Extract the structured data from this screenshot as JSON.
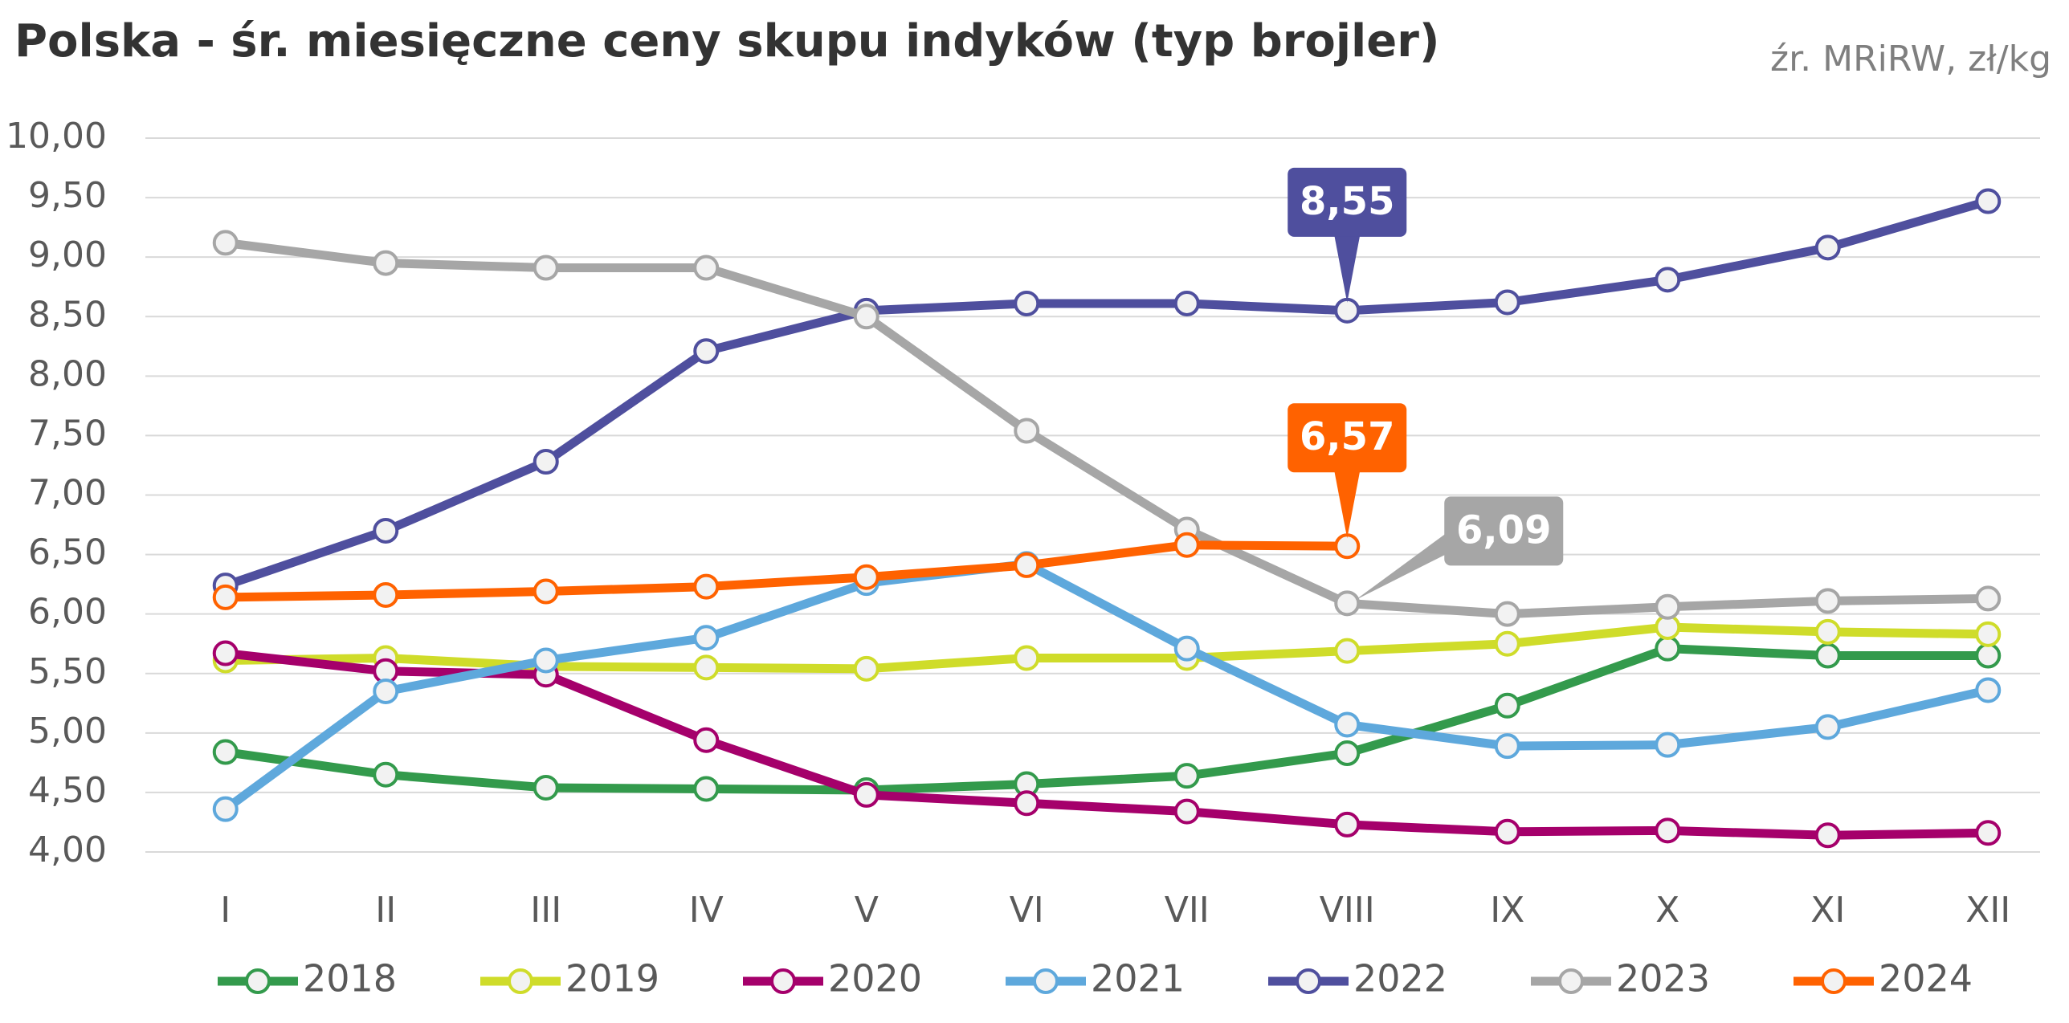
{
  "chart_data": {
    "type": "line",
    "title": "Polska - śr. miesięczne ceny skupu indyków (typ brojler)",
    "subtitle": "źr. MRiRW, zł/kg",
    "categories": [
      "I",
      "II",
      "III",
      "IV",
      "V",
      "VI",
      "VII",
      "VIII",
      "IX",
      "X",
      "XI",
      "XII"
    ],
    "ylim": [
      4,
      10
    ],
    "yticks": [
      {
        "value": 4,
        "label": "4,00"
      },
      {
        "value": 4.5,
        "label": "4,50"
      },
      {
        "value": 5,
        "label": "5,00"
      },
      {
        "value": 5.5,
        "label": "5,50"
      },
      {
        "value": 6,
        "label": "6,00"
      },
      {
        "value": 6.5,
        "label": "6,50"
      },
      {
        "value": 7,
        "label": "7,00"
      },
      {
        "value": 7.5,
        "label": "7,50"
      },
      {
        "value": 8,
        "label": "8,00"
      },
      {
        "value": 8.5,
        "label": "8,50"
      },
      {
        "value": 9,
        "label": "9,00"
      },
      {
        "value": 9.5,
        "label": "9,50"
      },
      {
        "value": 10,
        "label": "10,00"
      }
    ],
    "grid": true,
    "legend": "bottom",
    "series": [
      {
        "name": "2018",
        "color": "#339a4c",
        "values": [
          4.84,
          4.65,
          4.54,
          4.53,
          4.52,
          4.57,
          4.64,
          4.83,
          5.23,
          5.71,
          5.65,
          5.65
        ]
      },
      {
        "name": "2019",
        "color": "#cfdc2a",
        "values": [
          5.61,
          5.63,
          5.56,
          5.55,
          5.54,
          5.63,
          5.63,
          5.69,
          5.75,
          5.89,
          5.85,
          5.83
        ]
      },
      {
        "name": "2020",
        "color": "#a5006b",
        "values": [
          5.67,
          5.52,
          5.49,
          4.94,
          4.48,
          4.41,
          4.34,
          4.23,
          4.17,
          4.18,
          4.14,
          4.16
        ]
      },
      {
        "name": "2021",
        "color": "#5ea8dc",
        "values": [
          4.36,
          5.35,
          5.61,
          5.8,
          6.26,
          6.42,
          5.71,
          5.07,
          4.89,
          4.9,
          5.05,
          5.36
        ]
      },
      {
        "name": "2022",
        "color": "#4f4f9e",
        "values": [
          6.24,
          6.7,
          7.28,
          8.21,
          8.55,
          8.61,
          8.61,
          8.55,
          8.62,
          8.81,
          9.08,
          9.47
        ],
        "value_labels": [
          null,
          null,
          null,
          null,
          null,
          null,
          null,
          "8,55",
          null,
          null,
          null,
          null
        ]
      },
      {
        "name": "2023",
        "color": "#a6a6a6",
        "values": [
          9.12,
          8.95,
          8.91,
          8.91,
          8.5,
          7.54,
          6.71,
          6.09,
          6.0,
          6.06,
          6.11,
          6.13
        ],
        "value_labels": [
          null,
          null,
          null,
          null,
          null,
          null,
          null,
          "6,09",
          null,
          null,
          null,
          null
        ]
      },
      {
        "name": "2024",
        "color": "#ff6200",
        "values": [
          6.14,
          6.16,
          6.19,
          6.23,
          6.31,
          6.41,
          6.58,
          6.57,
          null,
          null,
          null,
          null
        ],
        "value_labels": [
          null,
          null,
          null,
          null,
          null,
          null,
          null,
          "6,57",
          null,
          null,
          null,
          null
        ]
      }
    ]
  }
}
